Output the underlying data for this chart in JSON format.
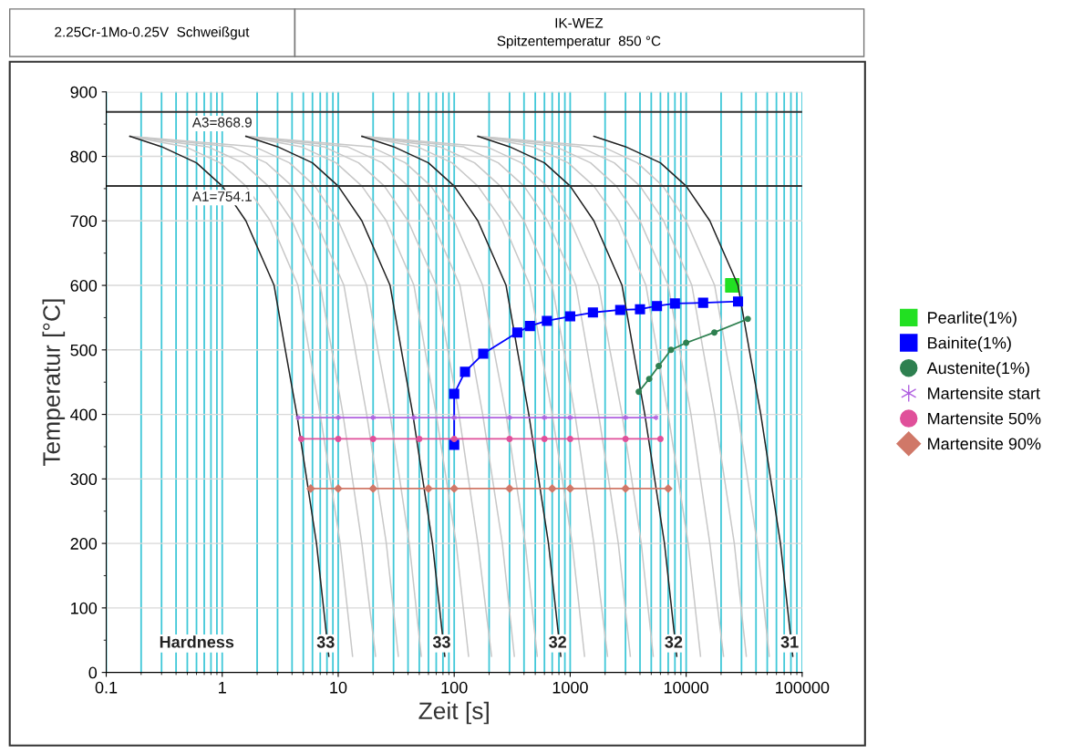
{
  "chart_data": {
    "type": "line",
    "title": "2.25Cr-1Mo-0.25V  Schweißgut",
    "subtitle": "IK-WEZ\nSpitzentemperatur  850 °C",
    "xlabel": "Zeit [s]",
    "ylabel": "Temperatur [°C]",
    "log": "x",
    "xlim": [
      0.1,
      100000
    ],
    "xticks": [
      0.1,
      1,
      10,
      100,
      1000,
      10000,
      100000
    ],
    "ylim": [
      0,
      900
    ],
    "yticks": [
      0,
      100,
      200,
      300,
      400,
      500,
      600,
      700,
      800,
      900
    ],
    "grid": true,
    "legend": "right",
    "ref_lines": [
      {
        "axis": "y",
        "value": 868.9,
        "label": "A3=868.9",
        "color": "#333333"
      },
      {
        "axis": "y",
        "value": 754.1,
        "label": "A1=754.1",
        "color": "#333333"
      }
    ],
    "annotations": [
      "Hardness",
      {
        "text": "33",
        "x": 7.8,
        "y": 45
      },
      {
        "text": "33",
        "x": 78,
        "y": 45
      },
      {
        "text": "32",
        "x": 780,
        "y": 45
      },
      {
        "text": "32",
        "x": 7800,
        "y": 45
      },
      {
        "text": "31",
        "x": 78000,
        "y": 45
      }
    ],
    "series": [
      {
        "type": "line",
        "color": "#c8c8c8",
        "x": [
          0.16,
          0.48,
          0.96,
          1.6,
          2.6,
          4.5,
          5.6,
          7,
          10.4,
          13.3
        ],
        "values": [
          831,
          815,
          790,
          754,
          700,
          600,
          500,
          400,
          200,
          25
        ]
      },
      {
        "type": "line",
        "color": "#c8c8c8",
        "x": [
          0.16,
          0.75,
          1.5,
          2.5,
          4,
          7,
          8.8,
          11,
          16,
          21
        ],
        "values": [
          831,
          815,
          790,
          754,
          700,
          600,
          500,
          400,
          200,
          25
        ]
      },
      {
        "type": "line",
        "color": "#c8c8c8",
        "x": [
          0.16,
          1.2,
          2.4,
          4,
          6.4,
          11.2,
          14,
          17.6,
          26,
          33
        ],
        "values": [
          831,
          815,
          790,
          754,
          700,
          600,
          500,
          400,
          200,
          25
        ]
      },
      {
        "type": "line",
        "color": "#c8c8c8",
        "x": [
          0.16,
          1.9,
          3.8,
          6.3,
          10,
          17.6,
          22,
          28,
          41,
          52
        ],
        "values": [
          831,
          815,
          790,
          754,
          700,
          600,
          500,
          400,
          200,
          25
        ]
      },
      {
        "type": "line",
        "color": "#c8c8c8",
        "x": [
          1.6,
          4.8,
          9.6,
          16,
          26,
          45,
          56,
          70,
          104,
          133
        ],
        "values": [
          831,
          815,
          790,
          754,
          700,
          600,
          500,
          400,
          200,
          25
        ]
      },
      {
        "type": "line",
        "color": "#c8c8c8",
        "x": [
          1.6,
          7.5,
          15,
          25,
          40,
          70,
          88,
          110,
          160,
          210
        ],
        "values": [
          831,
          815,
          790,
          754,
          700,
          600,
          500,
          400,
          200,
          25
        ]
      },
      {
        "type": "line",
        "color": "#c8c8c8",
        "x": [
          1.6,
          12,
          24,
          40,
          64,
          112,
          140,
          176,
          260,
          330
        ],
        "values": [
          831,
          815,
          790,
          754,
          700,
          600,
          500,
          400,
          200,
          25
        ]
      },
      {
        "type": "line",
        "color": "#c8c8c8",
        "x": [
          1.6,
          19,
          38,
          63,
          100,
          176,
          220,
          280,
          410,
          520
        ],
        "values": [
          831,
          815,
          790,
          754,
          700,
          600,
          500,
          400,
          200,
          25
        ]
      },
      {
        "type": "line",
        "color": "#c8c8c8",
        "x": [
          16,
          48,
          96,
          160,
          260,
          450,
          560,
          700,
          1040,
          1330
        ],
        "values": [
          831,
          815,
          790,
          754,
          700,
          600,
          500,
          400,
          200,
          25
        ]
      },
      {
        "type": "line",
        "color": "#c8c8c8",
        "x": [
          16,
          75,
          150,
          250,
          400,
          700,
          880,
          1100,
          1600,
          2100
        ],
        "values": [
          831,
          815,
          790,
          754,
          700,
          600,
          500,
          400,
          200,
          25
        ]
      },
      {
        "type": "line",
        "color": "#c8c8c8",
        "x": [
          16,
          120,
          240,
          400,
          640,
          1120,
          1400,
          1760,
          2600,
          3300
        ],
        "values": [
          831,
          815,
          790,
          754,
          700,
          600,
          500,
          400,
          200,
          25
        ]
      },
      {
        "type": "line",
        "color": "#c8c8c8",
        "x": [
          16,
          190,
          380,
          630,
          1000,
          1760,
          2200,
          2800,
          4100,
          5200
        ],
        "values": [
          831,
          815,
          790,
          754,
          700,
          600,
          500,
          400,
          200,
          25
        ]
      },
      {
        "type": "line",
        "color": "#c8c8c8",
        "x": [
          160,
          480,
          960,
          1600,
          2600,
          4500,
          5600,
          7000,
          10400,
          13300
        ],
        "values": [
          831,
          815,
          790,
          754,
          700,
          600,
          500,
          400,
          200,
          25
        ]
      },
      {
        "type": "line",
        "color": "#c8c8c8",
        "x": [
          160,
          750,
          1500,
          2500,
          4000,
          7000,
          8800,
          11000,
          16000,
          21000
        ],
        "values": [
          831,
          815,
          790,
          754,
          700,
          600,
          500,
          400,
          200,
          25
        ]
      },
      {
        "type": "line",
        "color": "#c8c8c8",
        "x": [
          160,
          1200,
          2400,
          4000,
          6400,
          11200,
          14000,
          17600,
          26000,
          33000
        ],
        "values": [
          831,
          815,
          790,
          754,
          700,
          600,
          500,
          400,
          200,
          25
        ]
      },
      {
        "type": "line",
        "color": "#c8c8c8",
        "x": [
          160,
          1900,
          3800,
          6300,
          10000,
          17600,
          22000,
          28000,
          41000,
          52000
        ],
        "values": [
          831,
          815,
          790,
          754,
          700,
          600,
          500,
          400,
          200,
          25
        ]
      },
      {
        "type": "line",
        "color": "#222222",
        "x": [
          0.16,
          0.3,
          0.6,
          1,
          1.6,
          2.8,
          3.5,
          4.4,
          6.5,
          8.3
        ],
        "values": [
          831,
          815,
          790,
          754,
          700,
          600,
          500,
          400,
          200,
          25
        ]
      },
      {
        "type": "line",
        "color": "#222222",
        "x": [
          1.6,
          3,
          6,
          10,
          16,
          28,
          35,
          44,
          65,
          83
        ],
        "values": [
          831,
          815,
          790,
          754,
          700,
          600,
          500,
          400,
          200,
          25
        ]
      },
      {
        "type": "line",
        "color": "#222222",
        "x": [
          16,
          30,
          60,
          100,
          160,
          280,
          350,
          440,
          650,
          830
        ],
        "values": [
          831,
          815,
          790,
          754,
          700,
          600,
          500,
          400,
          200,
          25
        ]
      },
      {
        "type": "line",
        "color": "#222222",
        "x": [
          160,
          300,
          600,
          1000,
          1600,
          2800,
          3500,
          4400,
          6500,
          8300
        ],
        "values": [
          831,
          815,
          790,
          754,
          700,
          600,
          500,
          400,
          200,
          25
        ]
      },
      {
        "type": "line",
        "color": "#222222",
        "x": [
          1600,
          3000,
          6000,
          10000,
          16000,
          28000,
          35000,
          44000,
          65000,
          83000
        ],
        "values": [
          831,
          815,
          790,
          754,
          700,
          600,
          500,
          400,
          200,
          25
        ]
      },
      {
        "type": "scatter",
        "name": "Pearlite(1%)",
        "color": "#22e022",
        "marker": "square",
        "x": [
          25000
        ],
        "values": [
          600
        ]
      },
      {
        "type": "line",
        "name": "Bainite(1%)",
        "color": "#0000ff",
        "marker": "square",
        "x": [
          100,
          100,
          124,
          178,
          350,
          450,
          630,
          1000,
          1570,
          2700,
          4000,
          5600,
          8000,
          14000,
          28000
        ],
        "values": [
          353,
          432,
          466,
          494,
          527,
          537,
          545,
          552,
          558,
          562,
          563,
          568,
          572,
          573,
          575
        ]
      },
      {
        "type": "line",
        "name": "Austenite(1%)",
        "color": "#2e8050",
        "marker": "circle",
        "x": [
          3900,
          4800,
          5800,
          7400,
          10000,
          17500,
          34000
        ],
        "values": [
          435,
          455,
          475,
          500,
          511,
          527,
          548
        ]
      },
      {
        "type": "line",
        "name": "Martensite start",
        "color": "#b060e0",
        "marker": "cross",
        "x": [
          4.5,
          10,
          20,
          45,
          100,
          300,
          600,
          1000,
          3000,
          5500
        ],
        "values": [
          395,
          395,
          395,
          395,
          395,
          395,
          395,
          395,
          395,
          395
        ]
      },
      {
        "type": "line",
        "name": "Martensite 50%",
        "color": "#e0509a",
        "marker": "circle",
        "x": [
          4.8,
          10,
          20,
          50,
          100,
          300,
          600,
          1000,
          3000,
          6000
        ],
        "values": [
          362,
          362,
          362,
          362,
          362,
          362,
          362,
          362,
          362,
          362
        ]
      },
      {
        "type": "line",
        "name": "Martensite 90%",
        "color": "#d07868",
        "marker": "diamond",
        "x": [
          5.8,
          10,
          20,
          60,
          100,
          300,
          700,
          1000,
          3000,
          7000
        ],
        "values": [
          285,
          285,
          285,
          285,
          285,
          285,
          285,
          285,
          285,
          285
        ]
      }
    ]
  }
}
